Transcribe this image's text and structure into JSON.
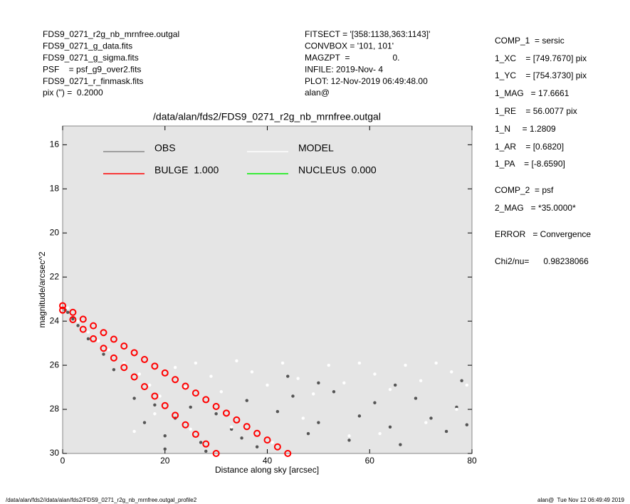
{
  "header_left": [
    "FDS9_0271_r2g_nb_mrnfree.outgal",
    "FDS9_0271_g_data.fits",
    "FDS9_0271_g_sigma.fits",
    "PSF    = psf_g9_over2.fits",
    "FDS9_0271_r_finmask.fits",
    "pix (\") =  0.2000"
  ],
  "header_mid": [
    "FITSECT = '[358:1138,363:1143]'",
    "CONVBOX = '101, 101'",
    "MAGZPT  =                  0.",
    "INFILE: 2019-Nov- 4",
    "PLOT: 12-Nov-2019 06:49:48.00",
    "alan@"
  ],
  "right_panel": [
    "COMP_1  = sersic",
    "1_XC    = [749.7670] pix",
    "1_YC    = [754.3730] pix",
    "1_MAG   = 17.6661",
    "1_RE    = 56.0077 pix",
    "1_N     = 1.2809",
    "1_AR    = [0.6820]",
    "1_PA    = [-8.6590]",
    "COMP_2  = psf",
    "2_MAG   = *35.0000*",
    "ERROR   = Convergence",
    "Chi2/nu=      0.98238066"
  ],
  "footer_left": "/data/alan/fds2//data/alan/fds2/FDS9_0271_r2g_nb_mrnfree.outgal_profile2",
  "footer_right": "alan@  Tue Nov 12 06:49:49 2019",
  "chart_data": {
    "type": "scatter",
    "title": "/data/alan/fds2/FDS9_0271_r2g_nb_mrnfree.outgal",
    "x_label": "Distance along sky [arcsec]",
    "y_label": "magnitude/arcsec^2",
    "xlim": [
      0,
      80
    ],
    "xticks": [
      0,
      20,
      40,
      60,
      80
    ],
    "ylim": [
      30,
      15.15
    ],
    "yticks": [
      16,
      18,
      20,
      22,
      24,
      26,
      28,
      30
    ],
    "series": [
      {
        "name": "OBS",
        "color": "#555555",
        "legend_color": "#888888",
        "x": [
          0.5,
          1,
          2,
          3,
          5,
          8,
          10,
          14,
          16,
          18,
          20,
          22,
          25,
          27,
          30,
          33,
          36,
          38,
          42,
          45,
          48,
          50,
          53,
          56,
          58,
          61,
          64,
          66,
          69,
          72,
          75,
          77,
          79,
          20,
          35,
          50,
          65,
          78,
          28,
          44
        ],
        "values": [
          23.5,
          23.6,
          23.9,
          24.2,
          24.8,
          25.5,
          26.2,
          27.5,
          28.6,
          27.8,
          29.2,
          28.4,
          27.9,
          29.5,
          28.2,
          28.9,
          27.6,
          29.7,
          28.1,
          27.4,
          29.1,
          28.6,
          27.2,
          29.4,
          28.3,
          27.7,
          28.8,
          29.6,
          27.5,
          28.4,
          29.0,
          27.9,
          28.7,
          29.8,
          29.3,
          26.8,
          26.9,
          26.7,
          29.9,
          26.5
        ]
      },
      {
        "name": "MODEL",
        "color": "#ffffff",
        "legend_color": "#ffffff",
        "x": [
          1,
          3,
          5,
          7,
          9,
          12,
          15,
          17,
          19,
          22,
          24,
          26,
          29,
          31,
          34,
          37,
          40,
          43,
          46,
          49,
          52,
          55,
          58,
          61,
          64,
          67,
          70,
          73,
          76,
          79,
          18,
          33,
          47,
          62,
          77,
          25,
          41,
          56,
          71,
          14
        ],
        "values": [
          23.4,
          24.0,
          24.5,
          24.9,
          25.3,
          25.9,
          26.4,
          26.9,
          27.4,
          26.1,
          27.0,
          25.9,
          26.5,
          27.2,
          25.8,
          26.3,
          26.9,
          25.9,
          26.6,
          27.3,
          26.0,
          26.8,
          25.9,
          26.4,
          27.1,
          26.0,
          26.7,
          25.9,
          26.3,
          26.9,
          28.2,
          28.8,
          28.4,
          29.1,
          28.0,
          28.9,
          29.5,
          29.2,
          28.6,
          29.0
        ]
      },
      {
        "name": "BULGE  1.000",
        "color": "#ff0000",
        "legend_color": "#ff0000",
        "x": [
          0,
          2,
          4,
          6,
          8,
          10,
          12,
          14,
          16,
          18,
          20,
          22,
          24,
          26,
          28,
          30,
          32,
          34,
          36,
          38,
          40,
          42,
          44,
          0,
          2,
          4,
          6,
          8,
          10,
          12,
          14,
          16,
          18,
          20,
          22,
          24,
          26,
          28,
          30
        ],
        "values": [
          23.3,
          23.6,
          23.91,
          24.21,
          24.52,
          24.82,
          25.13,
          25.43,
          25.74,
          26.04,
          26.35,
          26.65,
          26.95,
          27.26,
          27.56,
          27.87,
          28.17,
          28.48,
          28.78,
          29.09,
          29.39,
          29.7,
          30.0,
          23.5,
          23.93,
          24.37,
          24.8,
          25.23,
          25.67,
          26.1,
          26.53,
          26.97,
          27.4,
          27.83,
          28.27,
          28.7,
          29.13,
          29.57,
          30.0
        ]
      },
      {
        "name": "NUCLEUS  0.000",
        "color": "#00ff00",
        "legend_color": "#00ee00",
        "x": [],
        "values": []
      }
    ]
  }
}
